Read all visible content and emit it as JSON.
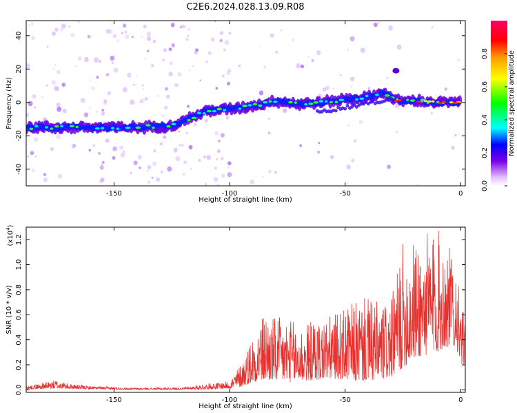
{
  "title": "C2E6.2024.028.13.09.R08",
  "chart_data": [
    {
      "type": "heatmap",
      "xlabel": "Height of straight line (km)",
      "ylabel": "Frequency (Hz)",
      "xlim": [
        -188,
        2
      ],
      "ylim": [
        -50,
        49
      ],
      "xticks": [
        -150,
        -100,
        -50,
        0
      ],
      "yticks": [
        -40,
        -20,
        0,
        20,
        40
      ],
      "ridge": [
        [
          -188,
          -15
        ],
        [
          -170,
          -15
        ],
        [
          -155,
          -15
        ],
        [
          -140,
          -15
        ],
        [
          -125,
          -14
        ],
        [
          -118,
          -10
        ],
        [
          -110,
          -5
        ],
        [
          -100,
          -4
        ],
        [
          -90,
          -2
        ],
        [
          -80,
          1
        ],
        [
          -70,
          -1
        ],
        [
          -60,
          0
        ],
        [
          -50,
          2
        ],
        [
          -40,
          3
        ],
        [
          -33,
          6
        ],
        [
          -28,
          1
        ],
        [
          -20,
          1
        ],
        [
          -10,
          0
        ],
        [
          0,
          0
        ]
      ],
      "colorbar": {
        "label": "Normalized spectral amplitude",
        "range": [
          0,
          1
        ],
        "ticks": [
          "0.0",
          "0.2",
          "0.4",
          "0.6",
          "0.8"
        ]
      }
    },
    {
      "type": "line",
      "xlabel": "Height of straight line (km)",
      "ylabel": "SNR (10 * v/v)",
      "scale_note": "(x10",
      "scale_exp": "4",
      "scale_close": ")",
      "color": "#e8312e",
      "xlim": [
        -188,
        2
      ],
      "ylim": [
        -0.02,
        1.3
      ],
      "xticks": [
        -150,
        -100,
        -50,
        0
      ],
      "yticks": [
        "0.0",
        "0.2",
        "0.4",
        "0.6",
        "0.8",
        "1.0",
        "1.2"
      ],
      "envelope": {
        "x": [
          -188,
          -175,
          -170,
          -160,
          -140,
          -120,
          -110,
          -100,
          -95,
          -90,
          -85,
          -80,
          -75,
          -70,
          -65,
          -60,
          -55,
          -50,
          -45,
          -40,
          -35,
          -30,
          -25,
          -20,
          -15,
          -10,
          -5,
          -2,
          0,
          2
        ],
        "base": [
          0.01,
          0.02,
          0.02,
          0.01,
          0.005,
          0.005,
          0.01,
          0.02,
          0.05,
          0.12,
          0.15,
          0.14,
          0.12,
          0.13,
          0.15,
          0.16,
          0.18,
          0.16,
          0.14,
          0.14,
          0.15,
          0.2,
          0.35,
          0.5,
          0.55,
          0.6,
          0.7,
          0.7,
          0.38,
          0.4
        ],
        "peak": [
          0.03,
          0.08,
          0.05,
          0.03,
          0.015,
          0.02,
          0.05,
          0.07,
          0.22,
          0.45,
          0.62,
          0.58,
          0.58,
          0.52,
          0.55,
          0.58,
          0.6,
          0.65,
          0.72,
          0.74,
          0.7,
          0.72,
          1.18,
          1.2,
          1.25,
          1.3,
          1.15,
          1.05,
          0.65,
          0.6
        ]
      }
    }
  ]
}
